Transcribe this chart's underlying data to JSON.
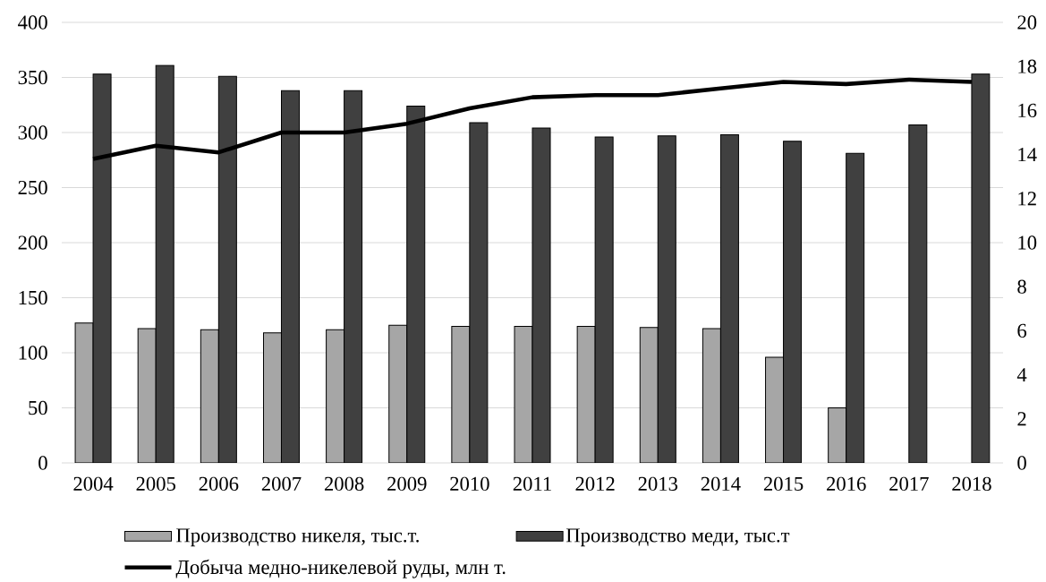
{
  "chart_data": {
    "type": "bar",
    "categories": [
      "2004",
      "2005",
      "2006",
      "2007",
      "2008",
      "2009",
      "2010",
      "2011",
      "2012",
      "2013",
      "2014",
      "2015",
      "2016",
      "2017",
      "2018"
    ],
    "series": [
      {
        "name": "Производство никеля, тыс.т.",
        "color": "#a6a6a6",
        "values": [
          127,
          122,
          121,
          118,
          121,
          125,
          124,
          124,
          124,
          123,
          122,
          96,
          50,
          null,
          null
        ]
      },
      {
        "name": "Производство меди, тыс.т",
        "color": "#404040",
        "values": [
          353,
          361,
          351,
          338,
          338,
          324,
          309,
          304,
          296,
          297,
          298,
          292,
          281,
          307,
          353
        ]
      },
      {
        "name": "Добыча медно-никелевой руды, млн т.",
        "type": "line",
        "axis": "y2",
        "color": "#000000",
        "values": [
          13.8,
          14.4,
          14.1,
          15.0,
          15.0,
          15.4,
          16.1,
          16.6,
          16.7,
          16.7,
          17.0,
          17.3,
          17.2,
          17.4,
          17.3
        ]
      }
    ],
    "ylim": [
      0,
      400
    ],
    "yticks": [
      0,
      50,
      100,
      150,
      200,
      250,
      300,
      350,
      400
    ],
    "y2lim": [
      0,
      20
    ],
    "y2ticks": [
      0,
      2,
      4,
      6,
      8,
      10,
      12,
      14,
      16,
      18,
      20
    ],
    "grid": "y",
    "legend": "bottom"
  }
}
